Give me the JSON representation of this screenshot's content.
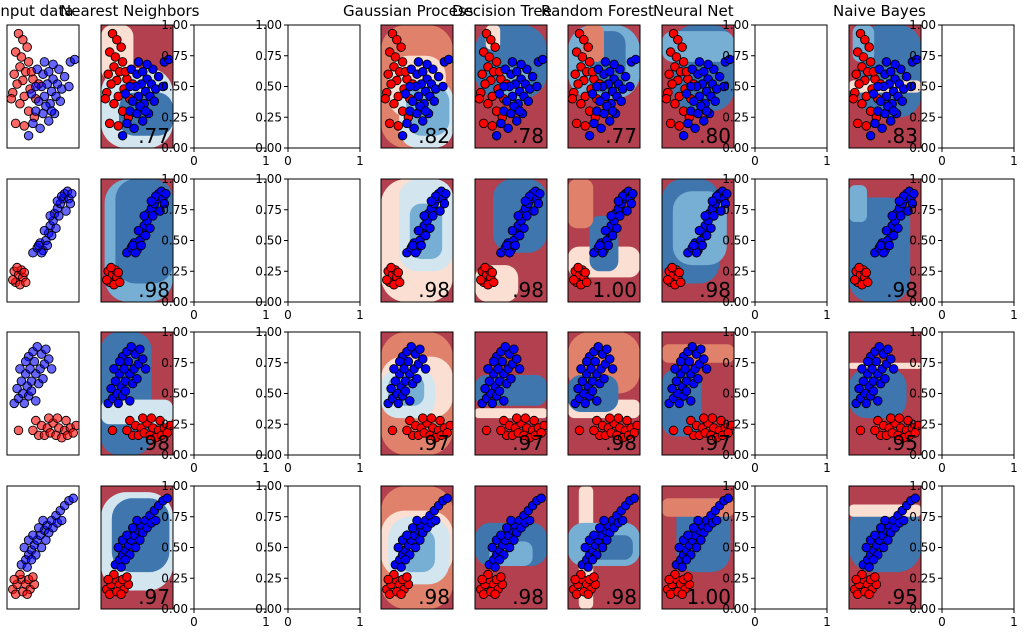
{
  "colors": {
    "red_region": "#b2404f",
    "red_light": "#e0826b",
    "red_pale": "#fbdfd2",
    "blue_pale": "#d3e6f0",
    "blue_light": "#76aed4",
    "blue_region": "#3f76ad",
    "red_point": "#ff0000",
    "blue_point": "#0000ff",
    "axis": "#000000"
  },
  "columns": [
    {
      "title": "Input data",
      "kind": "input"
    },
    {
      "title": "Nearest Neighbors",
      "kind": "classifier"
    },
    {
      "title": "",
      "kind": "empty"
    },
    {
      "title": "",
      "kind": "empty"
    },
    {
      "title": "Gaussian Process",
      "kind": "classifier"
    },
    {
      "title": "Decision Tree",
      "kind": "classifier"
    },
    {
      "title": "Random Forest",
      "kind": "classifier"
    },
    {
      "title": "Neural Net",
      "kind": "classifier"
    },
    {
      "title": "",
      "kind": "empty"
    },
    {
      "title": "Naive Bayes",
      "kind": "classifier"
    },
    {
      "title": "",
      "kind": "empty"
    }
  ],
  "chart_data": {
    "type": "scatter",
    "empty_axis": {
      "xticks": [
        "0",
        "1"
      ],
      "yticks": [
        "0.00",
        "0.25",
        "0.50",
        "0.75",
        "1.00"
      ],
      "xlim": [
        0,
        1
      ],
      "ylim": [
        0,
        1
      ]
    },
    "rows": [
      {
        "dataset": "row-1",
        "scores": [
          ".77",
          "",
          "",
          ".82",
          ".78",
          ".77",
          ".80",
          "",
          ".83",
          ""
        ],
        "red_points": [
          [
            0.16,
            0.93
          ],
          [
            0.22,
            0.88
          ],
          [
            0.28,
            0.82
          ],
          [
            0.12,
            0.78
          ],
          [
            0.2,
            0.74
          ],
          [
            0.3,
            0.7
          ],
          [
            0.18,
            0.66
          ],
          [
            0.26,
            0.62
          ],
          [
            0.1,
            0.6
          ],
          [
            0.36,
            0.56
          ],
          [
            0.22,
            0.55
          ],
          [
            0.14,
            0.52
          ],
          [
            0.32,
            0.48
          ],
          [
            0.08,
            0.45
          ],
          [
            0.24,
            0.42
          ],
          [
            0.4,
            0.4
          ],
          [
            0.18,
            0.36
          ],
          [
            0.3,
            0.3
          ],
          [
            0.12,
            0.2
          ],
          [
            0.24,
            0.18
          ],
          [
            0.38,
            0.25
          ],
          [
            0.44,
            0.52
          ],
          [
            0.34,
            0.62
          ],
          [
            0.06,
            0.4
          ]
        ],
        "blue_points": [
          [
            0.42,
            0.64
          ],
          [
            0.5,
            0.6
          ],
          [
            0.58,
            0.62
          ],
          [
            0.64,
            0.56
          ],
          [
            0.7,
            0.52
          ],
          [
            0.76,
            0.48
          ],
          [
            0.56,
            0.52
          ],
          [
            0.48,
            0.5
          ],
          [
            0.62,
            0.46
          ],
          [
            0.68,
            0.42
          ],
          [
            0.52,
            0.42
          ],
          [
            0.44,
            0.38
          ],
          [
            0.6,
            0.36
          ],
          [
            0.74,
            0.38
          ],
          [
            0.8,
            0.58
          ],
          [
            0.86,
            0.5
          ],
          [
            0.4,
            0.3
          ],
          [
            0.5,
            0.28
          ],
          [
            0.58,
            0.22
          ],
          [
            0.66,
            0.28
          ],
          [
            0.36,
            0.2
          ],
          [
            0.46,
            0.16
          ],
          [
            0.3,
            0.1
          ],
          [
            0.54,
            0.34
          ],
          [
            0.72,
            0.64
          ],
          [
            0.88,
            0.7
          ],
          [
            0.94,
            0.72
          ],
          [
            0.64,
            0.68
          ],
          [
            0.52,
            0.7
          ],
          [
            0.4,
            0.5
          ],
          [
            0.34,
            0.44
          ],
          [
            0.62,
            0.3
          ]
        ]
      },
      {
        "dataset": "row-2",
        "scores": [
          ".98",
          "",
          "",
          ".98",
          ".98",
          "1.00",
          ".98",
          "",
          ".98",
          ""
        ],
        "red_points": [
          [
            0.1,
            0.25
          ],
          [
            0.16,
            0.22
          ],
          [
            0.22,
            0.2
          ],
          [
            0.12,
            0.16
          ],
          [
            0.18,
            0.14
          ],
          [
            0.26,
            0.16
          ],
          [
            0.08,
            0.18
          ],
          [
            0.2,
            0.26
          ],
          [
            0.14,
            0.28
          ],
          [
            0.24,
            0.24
          ]
        ],
        "blue_points": [
          [
            0.36,
            0.4
          ],
          [
            0.42,
            0.44
          ],
          [
            0.46,
            0.48
          ],
          [
            0.5,
            0.42
          ],
          [
            0.54,
            0.5
          ],
          [
            0.58,
            0.56
          ],
          [
            0.6,
            0.62
          ],
          [
            0.64,
            0.66
          ],
          [
            0.66,
            0.72
          ],
          [
            0.7,
            0.76
          ],
          [
            0.74,
            0.8
          ],
          [
            0.78,
            0.84
          ],
          [
            0.8,
            0.88
          ],
          [
            0.84,
            0.9
          ],
          [
            0.72,
            0.7
          ],
          [
            0.68,
            0.6
          ],
          [
            0.62,
            0.54
          ],
          [
            0.56,
            0.46
          ],
          [
            0.76,
            0.86
          ],
          [
            0.86,
            0.84
          ],
          [
            0.88,
            0.8
          ],
          [
            0.7,
            0.82
          ],
          [
            0.6,
            0.7
          ],
          [
            0.52,
            0.58
          ],
          [
            0.48,
            0.4
          ],
          [
            0.44,
            0.46
          ],
          [
            0.82,
            0.74
          ],
          [
            0.9,
            0.88
          ]
        ]
      },
      {
        "dataset": "row-3",
        "scores": [
          ".98",
          "",
          "",
          ".97",
          ".97",
          ".98",
          ".97",
          "",
          ".95",
          ""
        ],
        "red_points": [
          [
            0.16,
            0.2
          ],
          [
            0.4,
            0.28
          ],
          [
            0.48,
            0.24
          ],
          [
            0.56,
            0.22
          ],
          [
            0.64,
            0.26
          ],
          [
            0.72,
            0.22
          ],
          [
            0.8,
            0.2
          ],
          [
            0.88,
            0.22
          ],
          [
            0.96,
            0.24
          ],
          [
            0.44,
            0.16
          ],
          [
            0.52,
            0.16
          ],
          [
            0.6,
            0.18
          ],
          [
            0.68,
            0.16
          ],
          [
            0.76,
            0.14
          ],
          [
            0.84,
            0.16
          ],
          [
            0.92,
            0.18
          ],
          [
            0.58,
            0.3
          ],
          [
            0.7,
            0.3
          ],
          [
            0.36,
            0.2
          ],
          [
            0.82,
            0.28
          ]
        ],
        "blue_points": [
          [
            0.1,
            0.42
          ],
          [
            0.16,
            0.46
          ],
          [
            0.22,
            0.5
          ],
          [
            0.28,
            0.56
          ],
          [
            0.34,
            0.6
          ],
          [
            0.4,
            0.66
          ],
          [
            0.46,
            0.7
          ],
          [
            0.52,
            0.74
          ],
          [
            0.3,
            0.8
          ],
          [
            0.36,
            0.84
          ],
          [
            0.42,
            0.88
          ],
          [
            0.48,
            0.82
          ],
          [
            0.54,
            0.86
          ],
          [
            0.58,
            0.78
          ],
          [
            0.2,
            0.6
          ],
          [
            0.26,
            0.66
          ],
          [
            0.32,
            0.7
          ],
          [
            0.38,
            0.76
          ],
          [
            0.44,
            0.58
          ],
          [
            0.5,
            0.62
          ],
          [
            0.24,
            0.42
          ],
          [
            0.3,
            0.48
          ],
          [
            0.14,
            0.54
          ],
          [
            0.18,
            0.7
          ],
          [
            0.62,
            0.7
          ],
          [
            0.26,
            0.76
          ],
          [
            0.4,
            0.44
          ],
          [
            0.34,
            0.52
          ]
        ]
      },
      {
        "dataset": "row-4",
        "scores": [
          ".97",
          "",
          "",
          ".98",
          ".98",
          ".98",
          "1.00",
          "",
          ".95",
          ""
        ],
        "red_points": [
          [
            0.08,
            0.16
          ],
          [
            0.14,
            0.2
          ],
          [
            0.2,
            0.24
          ],
          [
            0.26,
            0.2
          ],
          [
            0.32,
            0.16
          ],
          [
            0.38,
            0.2
          ],
          [
            0.12,
            0.12
          ],
          [
            0.22,
            0.14
          ],
          [
            0.3,
            0.24
          ],
          [
            0.18,
            0.28
          ],
          [
            0.36,
            0.26
          ],
          [
            0.1,
            0.24
          ],
          [
            0.28,
            0.12
          ]
        ],
        "blue_points": [
          [
            0.2,
            0.36
          ],
          [
            0.26,
            0.4
          ],
          [
            0.3,
            0.44
          ],
          [
            0.34,
            0.48
          ],
          [
            0.38,
            0.52
          ],
          [
            0.42,
            0.56
          ],
          [
            0.46,
            0.6
          ],
          [
            0.52,
            0.64
          ],
          [
            0.56,
            0.68
          ],
          [
            0.62,
            0.72
          ],
          [
            0.68,
            0.76
          ],
          [
            0.74,
            0.8
          ],
          [
            0.8,
            0.84
          ],
          [
            0.86,
            0.88
          ],
          [
            0.24,
            0.5
          ],
          [
            0.3,
            0.56
          ],
          [
            0.36,
            0.6
          ],
          [
            0.44,
            0.66
          ],
          [
            0.5,
            0.72
          ],
          [
            0.58,
            0.62
          ],
          [
            0.64,
            0.66
          ],
          [
            0.7,
            0.7
          ],
          [
            0.4,
            0.44
          ],
          [
            0.48,
            0.5
          ],
          [
            0.28,
            0.34
          ],
          [
            0.92,
            0.9
          ],
          [
            0.76,
            0.72
          ],
          [
            0.54,
            0.56
          ],
          [
            0.34,
            0.4
          ]
        ]
      }
    ]
  }
}
